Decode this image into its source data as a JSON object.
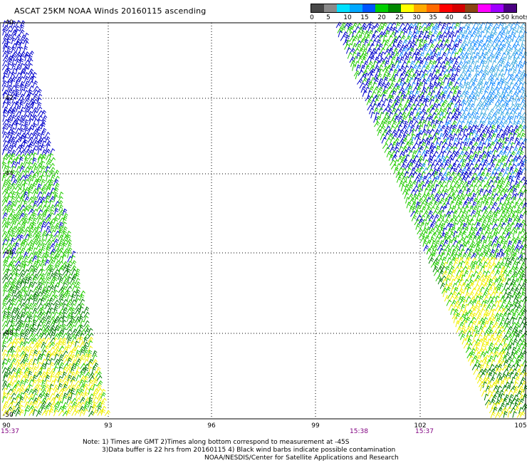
{
  "title": "ASCAT 25KM NOAA Winds 20160115 ascending",
  "legend": {
    "colors": [
      "#484848",
      "#8a8a8a",
      "#00e1ff",
      "#00a8ff",
      "#0055ff",
      "#00d000",
      "#008800",
      "#ffff00",
      "#ffaa00",
      "#ff6a00",
      "#ff0000",
      "#d40000",
      "#8b4513",
      "#ff00ff",
      "#a000ff",
      "#4b0082"
    ],
    "labels": [
      "0",
      "5",
      "10",
      "15",
      "20",
      "25",
      "30",
      "35",
      "40",
      "45",
      ">50 knots"
    ]
  },
  "axes": {
    "lat_labels": [
      "-40",
      "-42",
      "-44",
      "-46",
      "-48",
      "-50"
    ],
    "lon_labels": [
      "90",
      "93",
      "96",
      "99",
      "102",
      "105"
    ]
  },
  "times": [
    "15:37",
    "15:38",
    "15:37"
  ],
  "notes": {
    "line1": "Note: 1) Times are GMT 2)Times along bottom correspond to measurement at -45S",
    "line2": "3)Data buffer is 22 hrs from 20160115  4) Black wind barbs indicate possible contamination",
    "line3": "NOAA/NESDIS/Center for Satellite Applications and Research"
  },
  "swaths": [
    {
      "name": "west-swath",
      "color_bands": [
        "blue",
        "green",
        "dark-green",
        "yellow"
      ]
    },
    {
      "name": "east-swath",
      "color_bands": [
        "blue",
        "light-blue",
        "green",
        "dark-green",
        "yellow"
      ]
    }
  ]
}
